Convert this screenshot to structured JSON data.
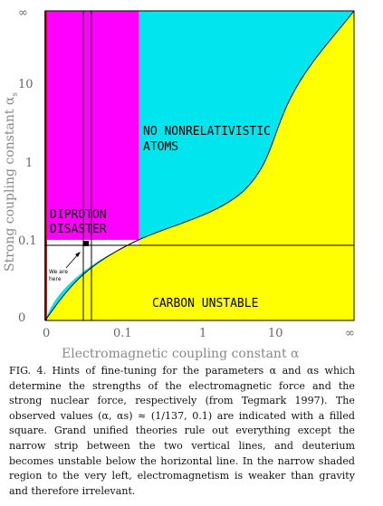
{
  "chart_data": {
    "type": "area",
    "xlabel": "Electromagnetic coupling constant α",
    "ylabel": "Strong coupling constant α",
    "ylabel_sub": "s",
    "x_ticks": [
      "0",
      "0.1",
      "1",
      "10",
      "∞"
    ],
    "y_ticks": [
      "0",
      "0.1",
      "1",
      "10",
      "∞"
    ],
    "regions": [
      {
        "name": "NO NONRELATIVISTIC ATOMS",
        "color": "#00e5ee"
      },
      {
        "name": "CARBON UNSTABLE",
        "color": "#ffff00"
      },
      {
        "name": "DIPROTON DISASTER",
        "color": "#ff00ff"
      }
    ],
    "region_label_lines": {
      "atoms": [
        "NO NONRELATIVISTIC",
        "ATOMS"
      ],
      "carbon": [
        "CARBON UNSTABLE"
      ],
      "diproton": [
        "DIPROTON",
        "DISASTER"
      ]
    },
    "annotation_lines": [
      "We are",
      "here"
    ],
    "observed_point": {
      "alpha": "1/137",
      "alpha_s": 0.1
    },
    "colors": {
      "cyan": "#00e5ee",
      "yellow": "#ffff00",
      "magenta": "#ff00ff",
      "red": "#ff0000",
      "white": "#ffffff"
    }
  },
  "caption": "FIG. 4.  Hints of fine-tuning for the parameters α and αs which determine the strengths of the electromagnetic force and the strong nuclear force, respectively (from Tegmark 1997).  The observed values (α, αs) ≈ (1/137, 0.1) are indicated with a filled square.  Grand unified theories rule out everything except the narrow strip between the two vertical lines, and deuterium becomes unstable below the horizontal line.  In the narrow shaded region to the very left, electromagnetism is weaker than gravity and therefore irrelevant."
}
